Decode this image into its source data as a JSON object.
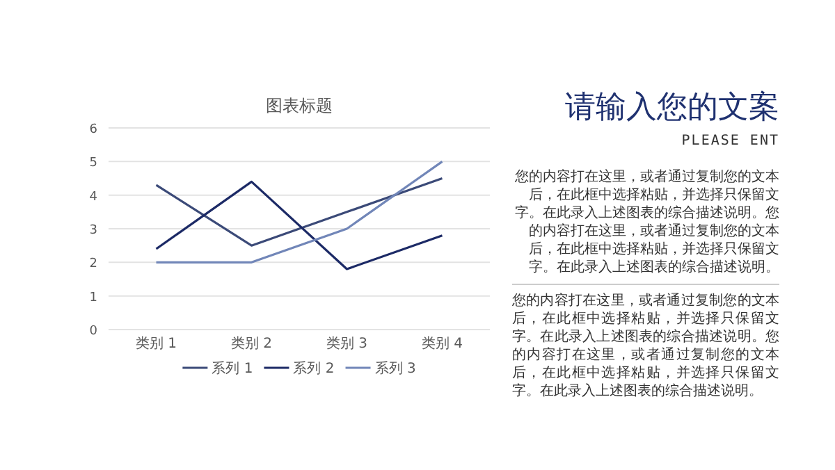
{
  "chart_data": {
    "type": "line",
    "title": "图表标题",
    "categories": [
      "类别 1",
      "类别 2",
      "类别 3",
      "类别 4"
    ],
    "series": [
      {
        "name": "系列 1",
        "color": "#3b4a78",
        "values": [
          4.3,
          2.5,
          3.5,
          4.5
        ]
      },
      {
        "name": "系列 2",
        "color": "#1c2a66",
        "values": [
          2.4,
          4.4,
          1.8,
          2.8
        ]
      },
      {
        "name": "系列 3",
        "color": "#7186b8",
        "values": [
          2,
          2,
          3,
          5
        ]
      }
    ],
    "ylim": [
      0,
      6
    ],
    "yticks": [
      0,
      1,
      2,
      3,
      4,
      5,
      6
    ],
    "grid": "y",
    "legend": "bottom",
    "marker": "none",
    "line_style": "solid",
    "annotations": [
      "请输入您的文案",
      "PLEASE ENT",
      "您的内容打在这里，或者通过复制您的文本后，在此框中选择粘贴，并选择只保留文字。在此录入上述图表的综合描述说明。您的内容打在这里，或者通过复制您的文本后，在此框中选择粘贴，并选择只保留文字。在此录入上述图表的综合描述说明。",
      "您的内容打在这里，或者通过复制您的文本后，在此框中选择粘贴，并选择只保留文字。在此录入上述图表的综合描述说明。您的内容打在这里，或者通过复制您的文本后，在此框中选择粘贴，并选择只保留文字。在此录入上述图表的综合描述说明。"
    ]
  }
}
